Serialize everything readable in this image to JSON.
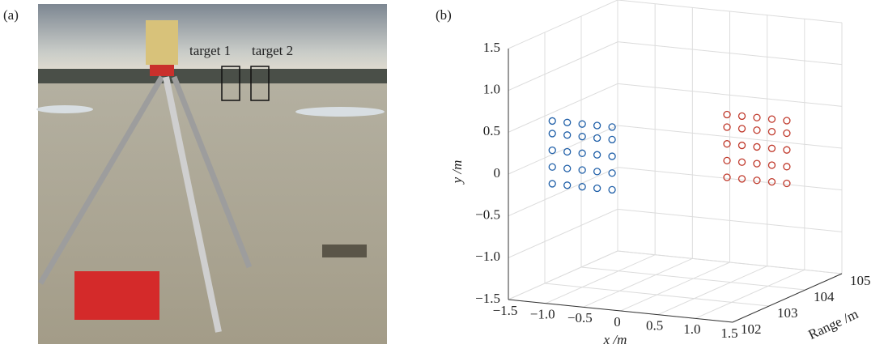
{
  "panel_a": {
    "label": "(a)",
    "target_1": "target 1",
    "target_2": "target 2"
  },
  "chart_data": {
    "type": "scatter3d",
    "label": "(b)",
    "xlabel": "x /m",
    "ylabel": "y /m",
    "zlabel": "Range /m",
    "xlim": [
      -1.5,
      1.5
    ],
    "ylim": [
      -1.5,
      1.5
    ],
    "zlim": [
      102,
      105
    ],
    "xticks": [
      {
        "value": -1.5,
        "label": "−1.5"
      },
      {
        "value": -1.0,
        "label": "−1.0"
      },
      {
        "value": -0.5,
        "label": "−0.5"
      },
      0,
      0.5,
      {
        "value": 1.0,
        "label": "1.0"
      },
      1.5
    ],
    "yticks": [
      {
        "value": -1.5,
        "label": "−1.5"
      },
      {
        "value": -1.0,
        "label": "−1.0"
      },
      {
        "value": -0.5,
        "label": "−0.5"
      },
      0,
      0.5,
      {
        "value": 1.0,
        "label": "1.0"
      },
      1.5
    ],
    "zticks": [
      102,
      103,
      104,
      105
    ],
    "grid": true,
    "series": [
      {
        "color": "#1f5fa8",
        "x": [
          -1.4,
          -1.2,
          -1.0,
          -0.8,
          -0.6,
          -1.4,
          -1.2,
          -1.0,
          -0.8,
          -0.6,
          -1.4,
          -1.2,
          -1.0,
          -0.8,
          -0.6,
          -1.4,
          -1.2,
          -1.0,
          -0.8,
          -0.6,
          -1.4,
          -1.2,
          -1.0,
          -0.8,
          -0.6
        ],
        "y": [
          -0.3,
          -0.3,
          -0.3,
          -0.3,
          -0.3,
          -0.1,
          -0.1,
          -0.1,
          -0.1,
          -0.1,
          0.1,
          0.1,
          0.1,
          0.1,
          0.1,
          0.3,
          0.3,
          0.3,
          0.3,
          0.3,
          0.45,
          0.45,
          0.45,
          0.45,
          0.45
        ],
        "z": [
          103,
          103,
          103,
          103,
          103,
          103,
          103,
          103,
          103,
          103,
          103,
          103,
          103,
          103,
          103,
          103,
          103,
          103,
          103,
          103,
          103,
          103,
          103,
          103,
          103
        ]
      },
      {
        "color": "#c0392b",
        "x": [
          0.45,
          0.65,
          0.85,
          1.05,
          1.25,
          0.45,
          0.65,
          0.85,
          1.05,
          1.25,
          0.45,
          0.65,
          0.85,
          1.05,
          1.25,
          0.45,
          0.65,
          0.85,
          1.05,
          1.25,
          0.45,
          0.65,
          0.85,
          1.05,
          1.25
        ],
        "y": [
          -0.25,
          -0.25,
          -0.25,
          -0.25,
          -0.25,
          -0.05,
          -0.05,
          -0.05,
          -0.05,
          -0.05,
          0.15,
          0.15,
          0.15,
          0.15,
          0.15,
          0.35,
          0.35,
          0.35,
          0.35,
          0.35,
          0.5,
          0.5,
          0.5,
          0.5,
          0.5
        ],
        "z": [
          104,
          104,
          104,
          104,
          104,
          104,
          104,
          104,
          104,
          104,
          104,
          104,
          104,
          104,
          104,
          104,
          104,
          104,
          104,
          104,
          104,
          104,
          104,
          104,
          104
        ]
      }
    ]
  }
}
